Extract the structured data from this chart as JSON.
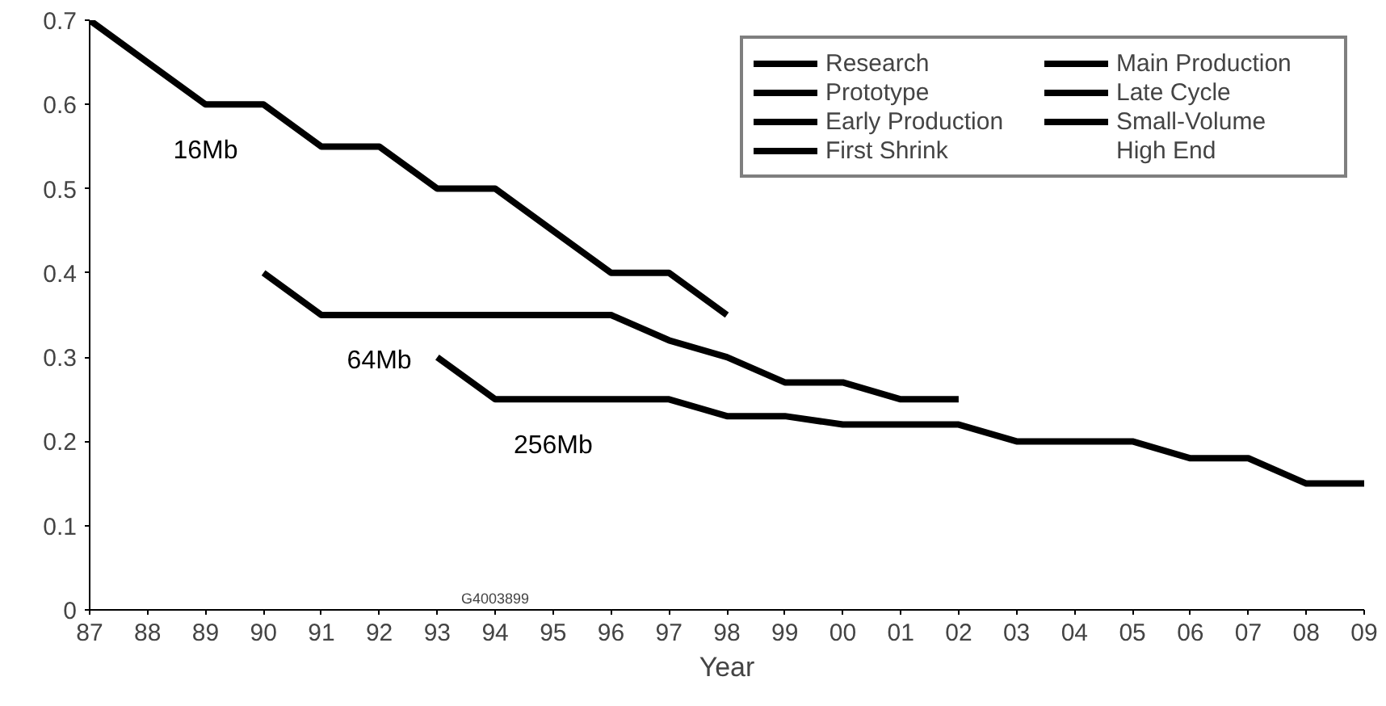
{
  "chart_data": {
    "type": "line",
    "xlabel": "Year",
    "x": [
      1987,
      1988,
      1989,
      1990,
      1991,
      1992,
      1993,
      1994,
      1995,
      1996,
      1997,
      1998,
      1999,
      2000,
      2001,
      2002,
      2003,
      2004,
      2005,
      2006,
      2007,
      2008,
      2009
    ],
    "series": [
      {
        "name": "16Mb",
        "color": "#000000",
        "values": [
          0.7,
          0.65,
          0.6,
          0.6,
          0.55,
          0.55,
          0.5,
          0.5,
          0.45,
          0.4,
          0.4,
          0.35,
          null,
          null,
          null,
          null,
          null,
          null,
          null,
          null,
          null,
          null,
          null
        ]
      },
      {
        "name": "64Mb",
        "color": "#000000",
        "values": [
          null,
          null,
          null,
          0.4,
          0.35,
          0.35,
          0.35,
          0.35,
          0.35,
          0.35,
          0.32,
          0.3,
          0.27,
          0.27,
          0.25,
          0.25,
          null,
          null,
          null,
          null,
          null,
          null,
          null
        ]
      },
      {
        "name": "256Mb",
        "color": "#000000",
        "values": [
          null,
          null,
          null,
          null,
          null,
          null,
          0.3,
          0.25,
          0.25,
          0.25,
          0.25,
          0.23,
          0.23,
          0.22,
          0.22,
          0.22,
          0.2,
          0.2,
          0.2,
          0.18,
          0.18,
          0.15,
          0.15
        ]
      },
      {
        "name": "Research",
        "color": "#000000",
        "values": [
          null,
          null,
          null,
          null,
          null,
          null,
          null,
          null,
          null,
          null,
          null,
          null,
          null,
          null,
          null,
          null,
          null,
          null,
          null,
          null,
          null,
          null,
          null
        ]
      },
      {
        "name": "Prototype",
        "color": "#000000",
        "values": [
          null,
          null,
          null,
          null,
          null,
          null,
          null,
          null,
          null,
          null,
          null,
          null,
          null,
          null,
          null,
          null,
          null,
          null,
          null,
          null,
          null,
          null,
          null
        ]
      },
      {
        "name": "Early Production",
        "color": "#000000",
        "values": [
          null,
          null,
          null,
          null,
          null,
          null,
          null,
          null,
          null,
          null,
          null,
          null,
          null,
          null,
          null,
          null,
          null,
          null,
          null,
          null,
          null,
          null,
          null
        ]
      },
      {
        "name": "First Shrink",
        "color": "#000000",
        "values": [
          null,
          null,
          null,
          null,
          null,
          null,
          null,
          null,
          null,
          null,
          null,
          null,
          null,
          null,
          null,
          null,
          null,
          null,
          null,
          null,
          null,
          null,
          null
        ]
      },
      {
        "name": "Main Production",
        "color": "#000000",
        "values": [
          null,
          null,
          null,
          null,
          null,
          null,
          null,
          null,
          null,
          null,
          null,
          null,
          null,
          null,
          null,
          null,
          null,
          null,
          null,
          null,
          null,
          null,
          null
        ]
      },
      {
        "name": "Late Cycle",
        "color": "#000000",
        "values": [
          null,
          null,
          null,
          null,
          null,
          null,
          null,
          null,
          null,
          null,
          null,
          null,
          null,
          null,
          null,
          null,
          null,
          null,
          null,
          null,
          null,
          null,
          null
        ]
      },
      {
        "name": "Small-Volume",
        "color": "#000000",
        "values": [
          null,
          null,
          null,
          null,
          null,
          null,
          null,
          null,
          null,
          null,
          null,
          null,
          null,
          null,
          null,
          null,
          null,
          null,
          null,
          null,
          null,
          null,
          null
        ]
      },
      {
        "name": "High End",
        "values": [
          null,
          null,
          null,
          null,
          null,
          null,
          null,
          null,
          null,
          null,
          null,
          null,
          null,
          null,
          null,
          null,
          null,
          null,
          null,
          null,
          null,
          null,
          null
        ]
      }
    ],
    "xlim": [
      1987,
      2009
    ],
    "ylim": [
      0,
      0.7
    ],
    "xticks": [
      {
        "value": 1987,
        "label": "87"
      },
      {
        "value": 1988,
        "label": "88"
      },
      {
        "value": 1989,
        "label": "89"
      },
      {
        "value": 1990,
        "label": "90"
      },
      {
        "value": 1991,
        "label": "91"
      },
      {
        "value": 1992,
        "label": "92"
      },
      {
        "value": 1993,
        "label": "93"
      },
      {
        "value": 1994,
        "label": "94"
      },
      {
        "value": 1995,
        "label": "95"
      },
      {
        "value": 1996,
        "label": "96"
      },
      {
        "value": 1997,
        "label": "97"
      },
      {
        "value": 1998,
        "label": "98"
      },
      {
        "value": 1999,
        "label": "99"
      },
      {
        "value": 2000,
        "label": "00"
      },
      {
        "value": 2001,
        "label": "01"
      },
      {
        "value": 2002,
        "label": "02"
      },
      {
        "value": 2003,
        "label": "03"
      },
      {
        "value": 2004,
        "label": "04"
      },
      {
        "value": 2005,
        "label": "05"
      },
      {
        "value": 2006,
        "label": "06"
      },
      {
        "value": 2007,
        "label": "07"
      },
      {
        "value": 2008,
        "label": "08"
      },
      {
        "value": 2009,
        "label": "09"
      }
    ],
    "yticks": [
      0,
      0.1,
      0.2,
      0.3,
      0.4,
      0.5,
      0.6,
      0.7
    ],
    "grid": false,
    "legend": "top right",
    "marker": "none",
    "line_style": "solid",
    "annotations": [
      "G4003899"
    ]
  }
}
